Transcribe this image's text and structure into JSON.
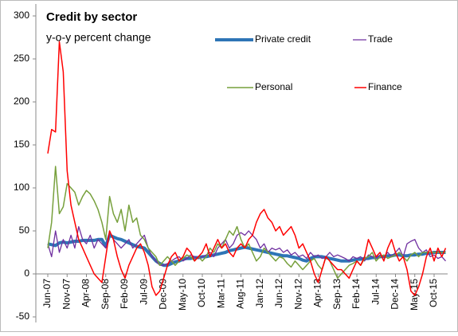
{
  "chart_data": {
    "type": "line",
    "title": "Credit by sector",
    "subtitle": "y-o-y percent change",
    "categories": [
      "Jun-07",
      null,
      null,
      null,
      null,
      "Nov-07",
      null,
      null,
      null,
      null,
      "Apr-08",
      null,
      null,
      null,
      null,
      "Sep-08",
      null,
      null,
      null,
      null,
      "Feb-09",
      null,
      null,
      null,
      null,
      "Jul-09",
      null,
      null,
      null,
      null,
      "Dec-09",
      null,
      null,
      null,
      null,
      "May-10",
      null,
      null,
      null,
      null,
      "Oct-10",
      null,
      null,
      null,
      null,
      "Mar-11",
      null,
      null,
      null,
      null,
      "Aug-11",
      null,
      null,
      null,
      null,
      "Jan-12",
      null,
      null,
      null,
      null,
      "Jun-12",
      null,
      null,
      null,
      null,
      "Nov-12",
      null,
      null,
      null,
      null,
      "Apr-13",
      null,
      null,
      null,
      null,
      "Sep-13",
      null,
      null,
      null,
      null,
      "Feb-14",
      null,
      null,
      null,
      null,
      "Jul-14",
      null,
      null,
      null,
      null,
      "Dec-14",
      null,
      null,
      null,
      null,
      "May-15",
      null,
      null,
      null,
      null,
      "Oct-15",
      null,
      null,
      null
    ],
    "series": [
      {
        "name": "Private credit",
        "color": "#2e75b6",
        "width": 4,
        "values": [
          35,
          34,
          33,
          36,
          37,
          36,
          37,
          38,
          38,
          39,
          39,
          39,
          39,
          40,
          40,
          32,
          45,
          43,
          41,
          40,
          38,
          36,
          34,
          32,
          31,
          30,
          25,
          20,
          15,
          12,
          10,
          10,
          12,
          14,
          15,
          17,
          18,
          18,
          19,
          19,
          20,
          20,
          21,
          22,
          23,
          24,
          25,
          27,
          28,
          29,
          30,
          31,
          30,
          29,
          28,
          27,
          26,
          25,
          24,
          23,
          22,
          21,
          21,
          20,
          19,
          18,
          16,
          15,
          18,
          20,
          20,
          20,
          19,
          18,
          17,
          16,
          15,
          15,
          15,
          16,
          17,
          17,
          18,
          18,
          19,
          19,
          20,
          20,
          21,
          21,
          22,
          22,
          21,
          21,
          22,
          22,
          23,
          23,
          24,
          24,
          25,
          25,
          25,
          25
        ]
      },
      {
        "name": "Trade",
        "color": "#7030a0",
        "width": 1.3,
        "values": [
          35,
          20,
          50,
          25,
          40,
          30,
          45,
          30,
          55,
          40,
          35,
          45,
          30,
          40,
          35,
          30,
          50,
          40,
          35,
          30,
          35,
          40,
          30,
          35,
          40,
          45,
          30,
          20,
          15,
          10,
          10,
          12,
          15,
          18,
          20,
          15,
          18,
          22,
          20,
          18,
          20,
          22,
          25,
          20,
          30,
          35,
          40,
          30,
          35,
          45,
          48,
          45,
          50,
          45,
          40,
          30,
          35,
          25,
          30,
          28,
          30,
          25,
          28,
          22,
          25,
          20,
          22,
          18,
          25,
          20,
          22,
          18,
          20,
          25,
          20,
          22,
          20,
          18,
          15,
          20,
          18,
          20,
          15,
          22,
          20,
          18,
          22,
          20,
          25,
          20,
          25,
          30,
          20,
          35,
          38,
          40,
          30,
          25,
          28,
          20,
          22,
          18,
          20,
          15
        ]
      },
      {
        "name": "Personal",
        "color": "#77a03c",
        "width": 1.5,
        "values": [
          30,
          60,
          125,
          70,
          78,
          105,
          100,
          95,
          80,
          90,
          97,
          93,
          85,
          75,
          60,
          40,
          90,
          70,
          60,
          75,
          50,
          80,
          60,
          65,
          45,
          40,
          30,
          25,
          20,
          10,
          15,
          20,
          15,
          10,
          15,
          18,
          22,
          20,
          15,
          20,
          15,
          20,
          30,
          25,
          35,
          30,
          40,
          50,
          45,
          55,
          40,
          30,
          35,
          25,
          15,
          20,
          30,
          25,
          20,
          15,
          20,
          18,
          12,
          8,
          15,
          10,
          5,
          10,
          15,
          18,
          10,
          5,
          20,
          15,
          5,
          -5,
          0,
          5,
          10,
          12,
          15,
          10,
          18,
          20,
          25,
          15,
          20,
          22,
          18,
          20,
          22,
          25,
          20,
          15,
          22,
          25,
          20,
          25,
          25,
          25,
          25,
          25,
          25,
          25
        ]
      },
      {
        "name": "Finance",
        "color": "#ff0000",
        "width": 1.5,
        "values": [
          140,
          168,
          165,
          270,
          235,
          120,
          80,
          60,
          40,
          30,
          20,
          10,
          0,
          -5,
          -10,
          20,
          50,
          40,
          20,
          5,
          -5,
          10,
          20,
          30,
          35,
          25,
          10,
          -15,
          -25,
          -20,
          -5,
          10,
          20,
          25,
          15,
          20,
          30,
          25,
          15,
          20,
          25,
          35,
          20,
          30,
          40,
          30,
          35,
          25,
          20,
          30,
          35,
          30,
          40,
          45,
          60,
          70,
          75,
          65,
          60,
          50,
          55,
          45,
          50,
          55,
          45,
          30,
          35,
          25,
          15,
          0,
          -10,
          5,
          20,
          15,
          10,
          5,
          5,
          0,
          -5,
          5,
          15,
          10,
          20,
          40,
          30,
          20,
          25,
          15,
          30,
          40,
          25,
          15,
          20,
          5,
          -20,
          -25,
          -15,
          0,
          20,
          30,
          15,
          30,
          20,
          30
        ]
      }
    ],
    "ylim": [
      -50,
      300
    ],
    "yticks": [
      -50,
      0,
      50,
      100,
      150,
      200,
      250,
      300
    ]
  }
}
